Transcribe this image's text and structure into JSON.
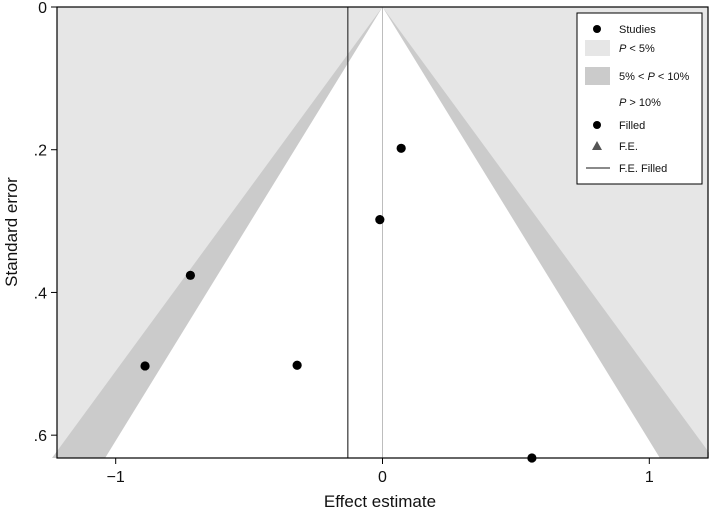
{
  "chart_data": {
    "type": "scatter",
    "subtype": "contour-enhanced funnel plot",
    "xlabel": "Effect estimate",
    "ylabel": "Standard error",
    "xlim": [
      -1.22,
      1.22
    ],
    "ylim": [
      0,
      0.632
    ],
    "y_reversed": true,
    "x_ticks": [
      -1,
      0,
      1
    ],
    "x_tick_labels": [
      "−1",
      "0",
      "1"
    ],
    "y_ticks": [
      0,
      0.2,
      0.4,
      0.6
    ],
    "y_tick_labels": [
      "0",
      ".2",
      ".4",
      ".6"
    ],
    "pooled_estimate": 0,
    "filled_line_x": -0.13,
    "contours": [
      {
        "label": "P < 5%",
        "z": 1.96,
        "color": "#e6e6e6"
      },
      {
        "label": "5% < P < 10%",
        "z": 1.645,
        "color": "#cbcbcb"
      },
      {
        "label": "P > 10%",
        "color": "#ffffff"
      }
    ],
    "series": [
      {
        "name": "Studies",
        "marker": "circle",
        "color": "#000000",
        "points": [
          {
            "x": 0.07,
            "y": 0.198
          },
          {
            "x": -0.01,
            "y": 0.298
          },
          {
            "x": -0.72,
            "y": 0.376
          },
          {
            "x": -0.89,
            "y": 0.503
          },
          {
            "x": -0.32,
            "y": 0.502
          },
          {
            "x": 0.56,
            "y": 0.632
          }
        ]
      },
      {
        "name": "Filled",
        "marker": "circle",
        "color": "#000000",
        "points": []
      },
      {
        "name": "F.E.",
        "marker": "triangle",
        "color": "#555555",
        "points": []
      },
      {
        "name": "F.E. Filled",
        "marker": "line",
        "color": "#444444",
        "points": []
      }
    ],
    "legend": {
      "position": "top-right",
      "entries": [
        {
          "type": "dot",
          "label": "Studies"
        },
        {
          "type": "swatch-light",
          "prefix": "P",
          "suffix": " < 5%"
        },
        {
          "type": "swatch-dark",
          "prefix": "5% < ",
          "mid": "P",
          "suffix": " < 10%"
        },
        {
          "type": "none",
          "prefix": "P",
          "suffix": " > 10%"
        },
        {
          "type": "dot",
          "label": "Filled"
        },
        {
          "type": "triangle",
          "label": "F.E."
        },
        {
          "type": "line",
          "label": "F.E. Filled"
        }
      ]
    }
  }
}
